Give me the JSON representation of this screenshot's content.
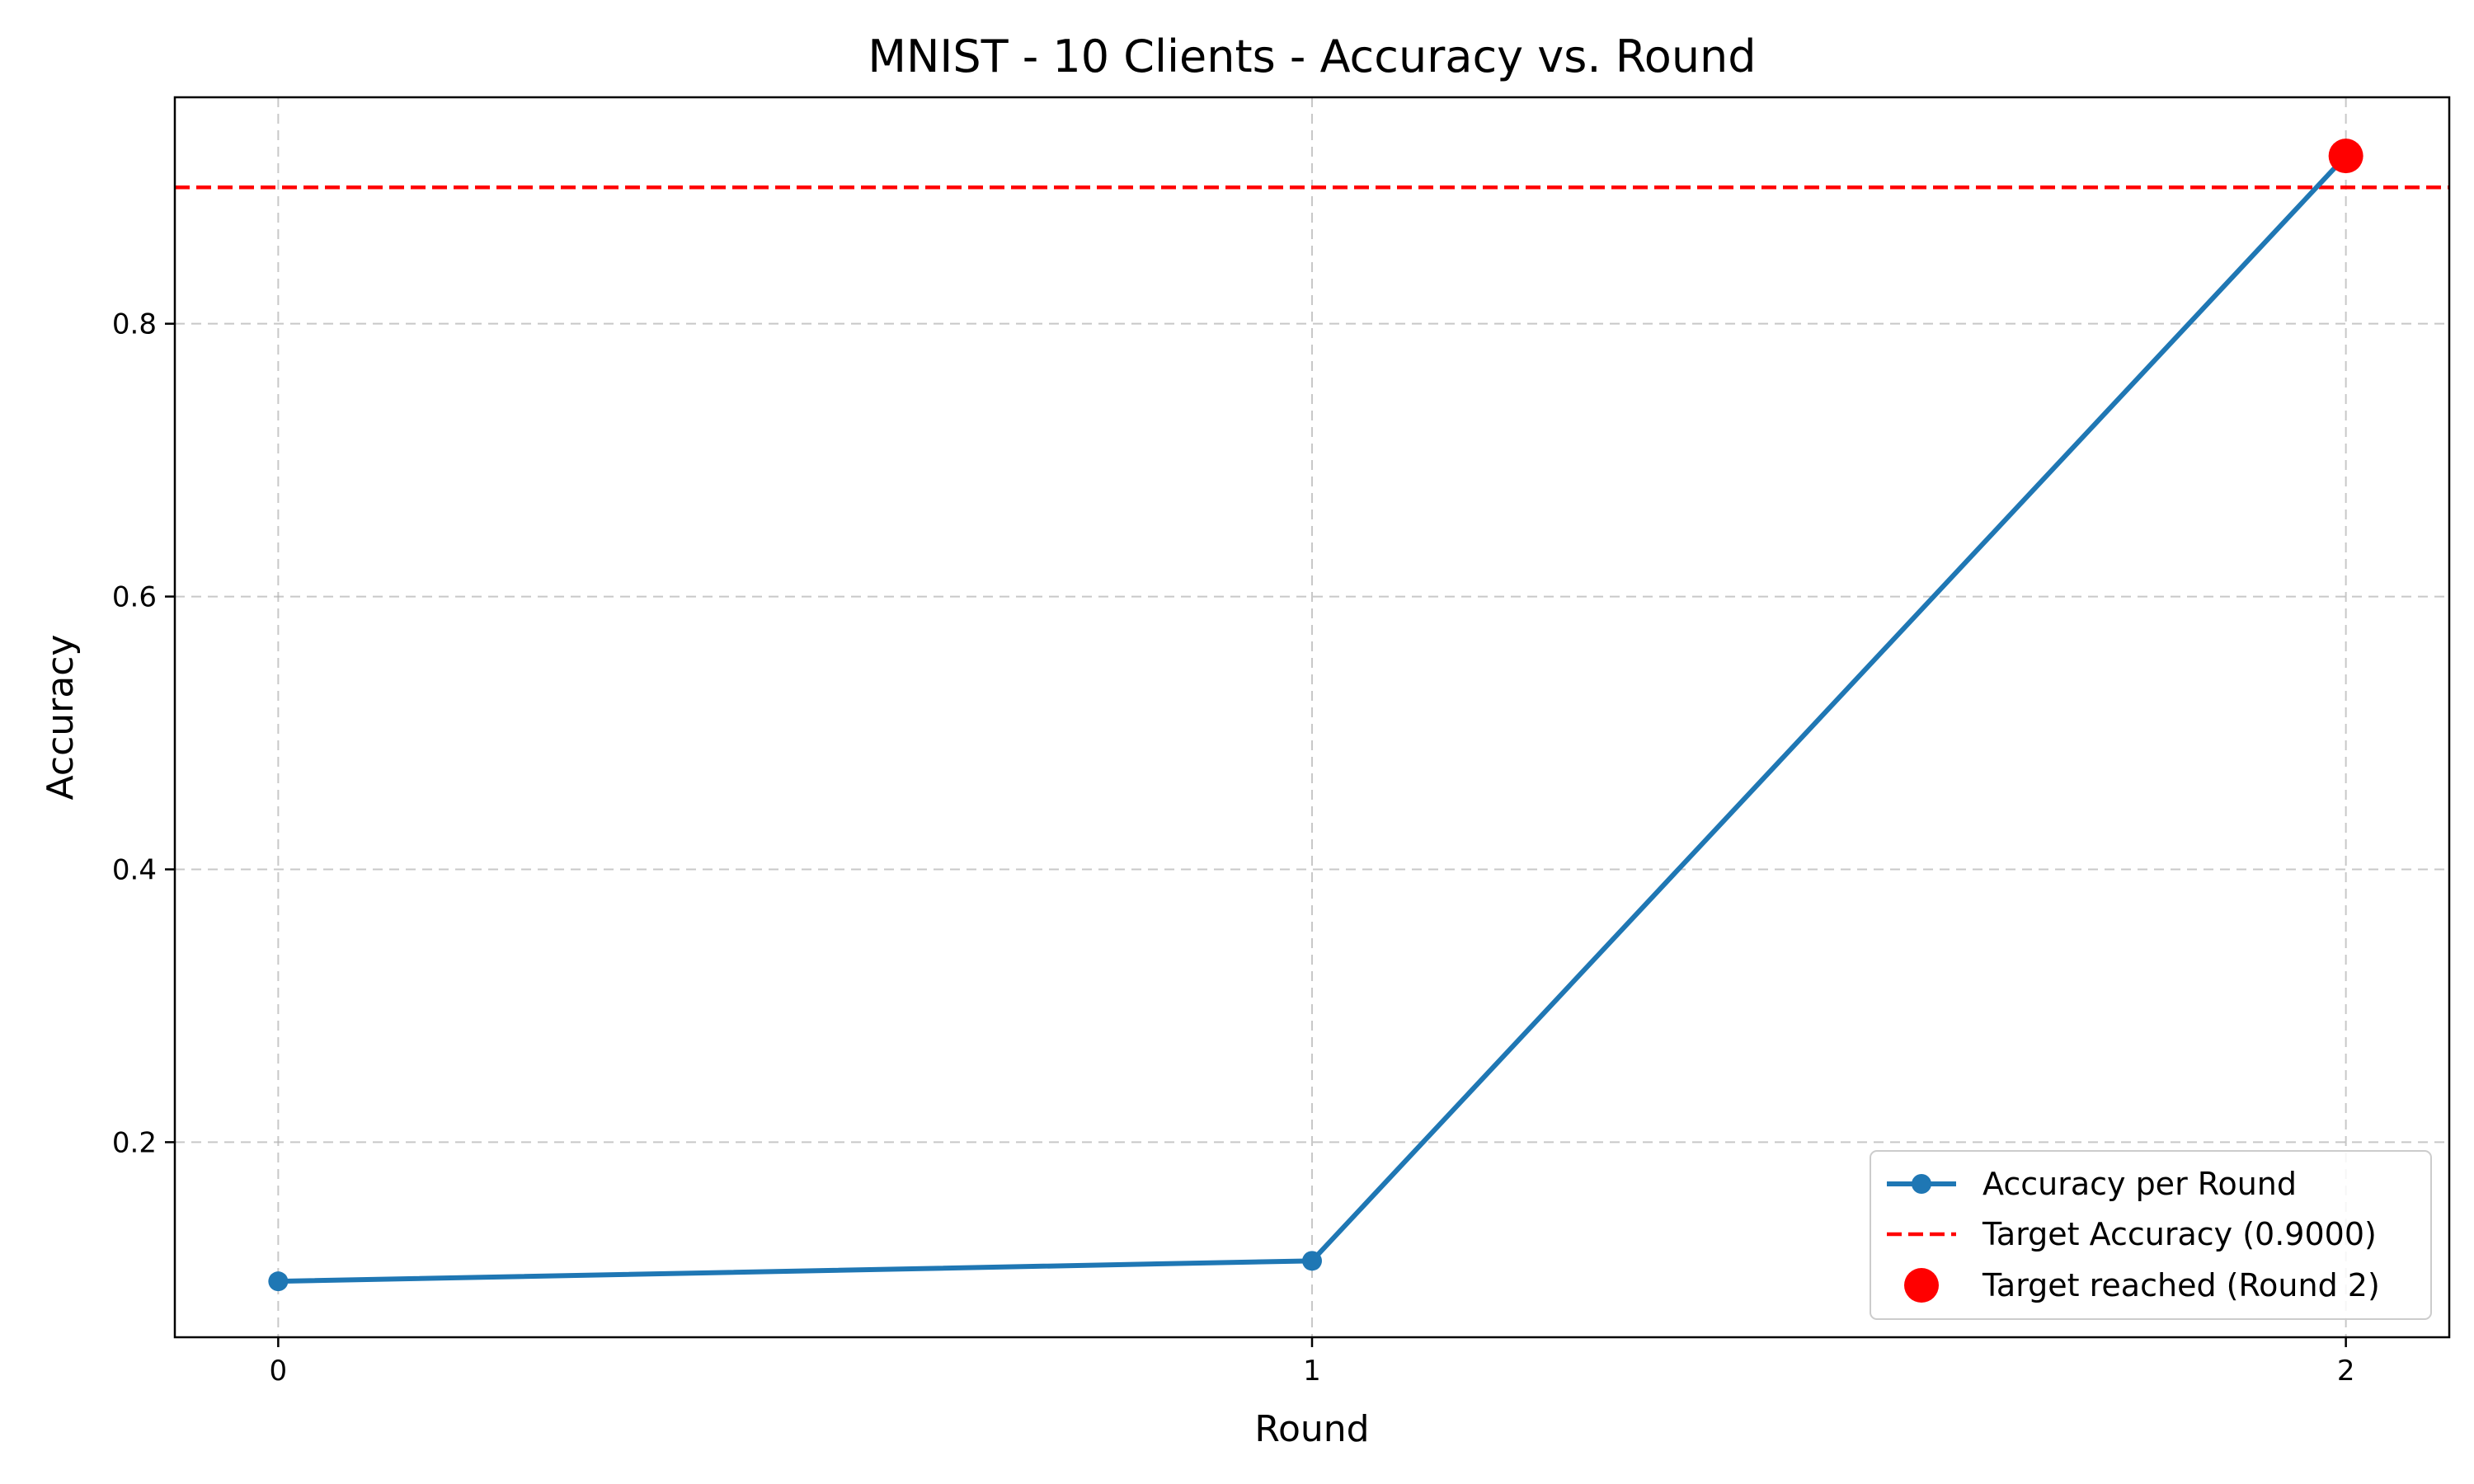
{
  "chart_data": {
    "type": "line",
    "title": "MNIST - 10 Clients - Accuracy vs. Round",
    "xlabel": "Round",
    "ylabel": "Accuracy",
    "x": [
      0,
      1,
      2
    ],
    "xticks": [
      0,
      1,
      2
    ],
    "yticks": [
      0.2,
      0.4,
      0.6,
      0.8
    ],
    "xlim": [
      -0.1,
      2.1
    ],
    "ylim": [
      0.057,
      0.966
    ],
    "grid": true,
    "legend_position": "lower-right",
    "series": [
      {
        "name": "Accuracy per Round",
        "values": [
          0.098,
          0.113,
          0.923
        ],
        "color": "#1f77b4",
        "style": "solid-with-markers"
      }
    ],
    "target_line": {
      "name": "Target Accuracy (0.9000)",
      "value": 0.9,
      "color": "#ff0000",
      "style": "dashed"
    },
    "highlight_point": {
      "name": "Target reached (Round 2)",
      "x": 2,
      "y": 0.923,
      "color": "#ff0000"
    }
  }
}
